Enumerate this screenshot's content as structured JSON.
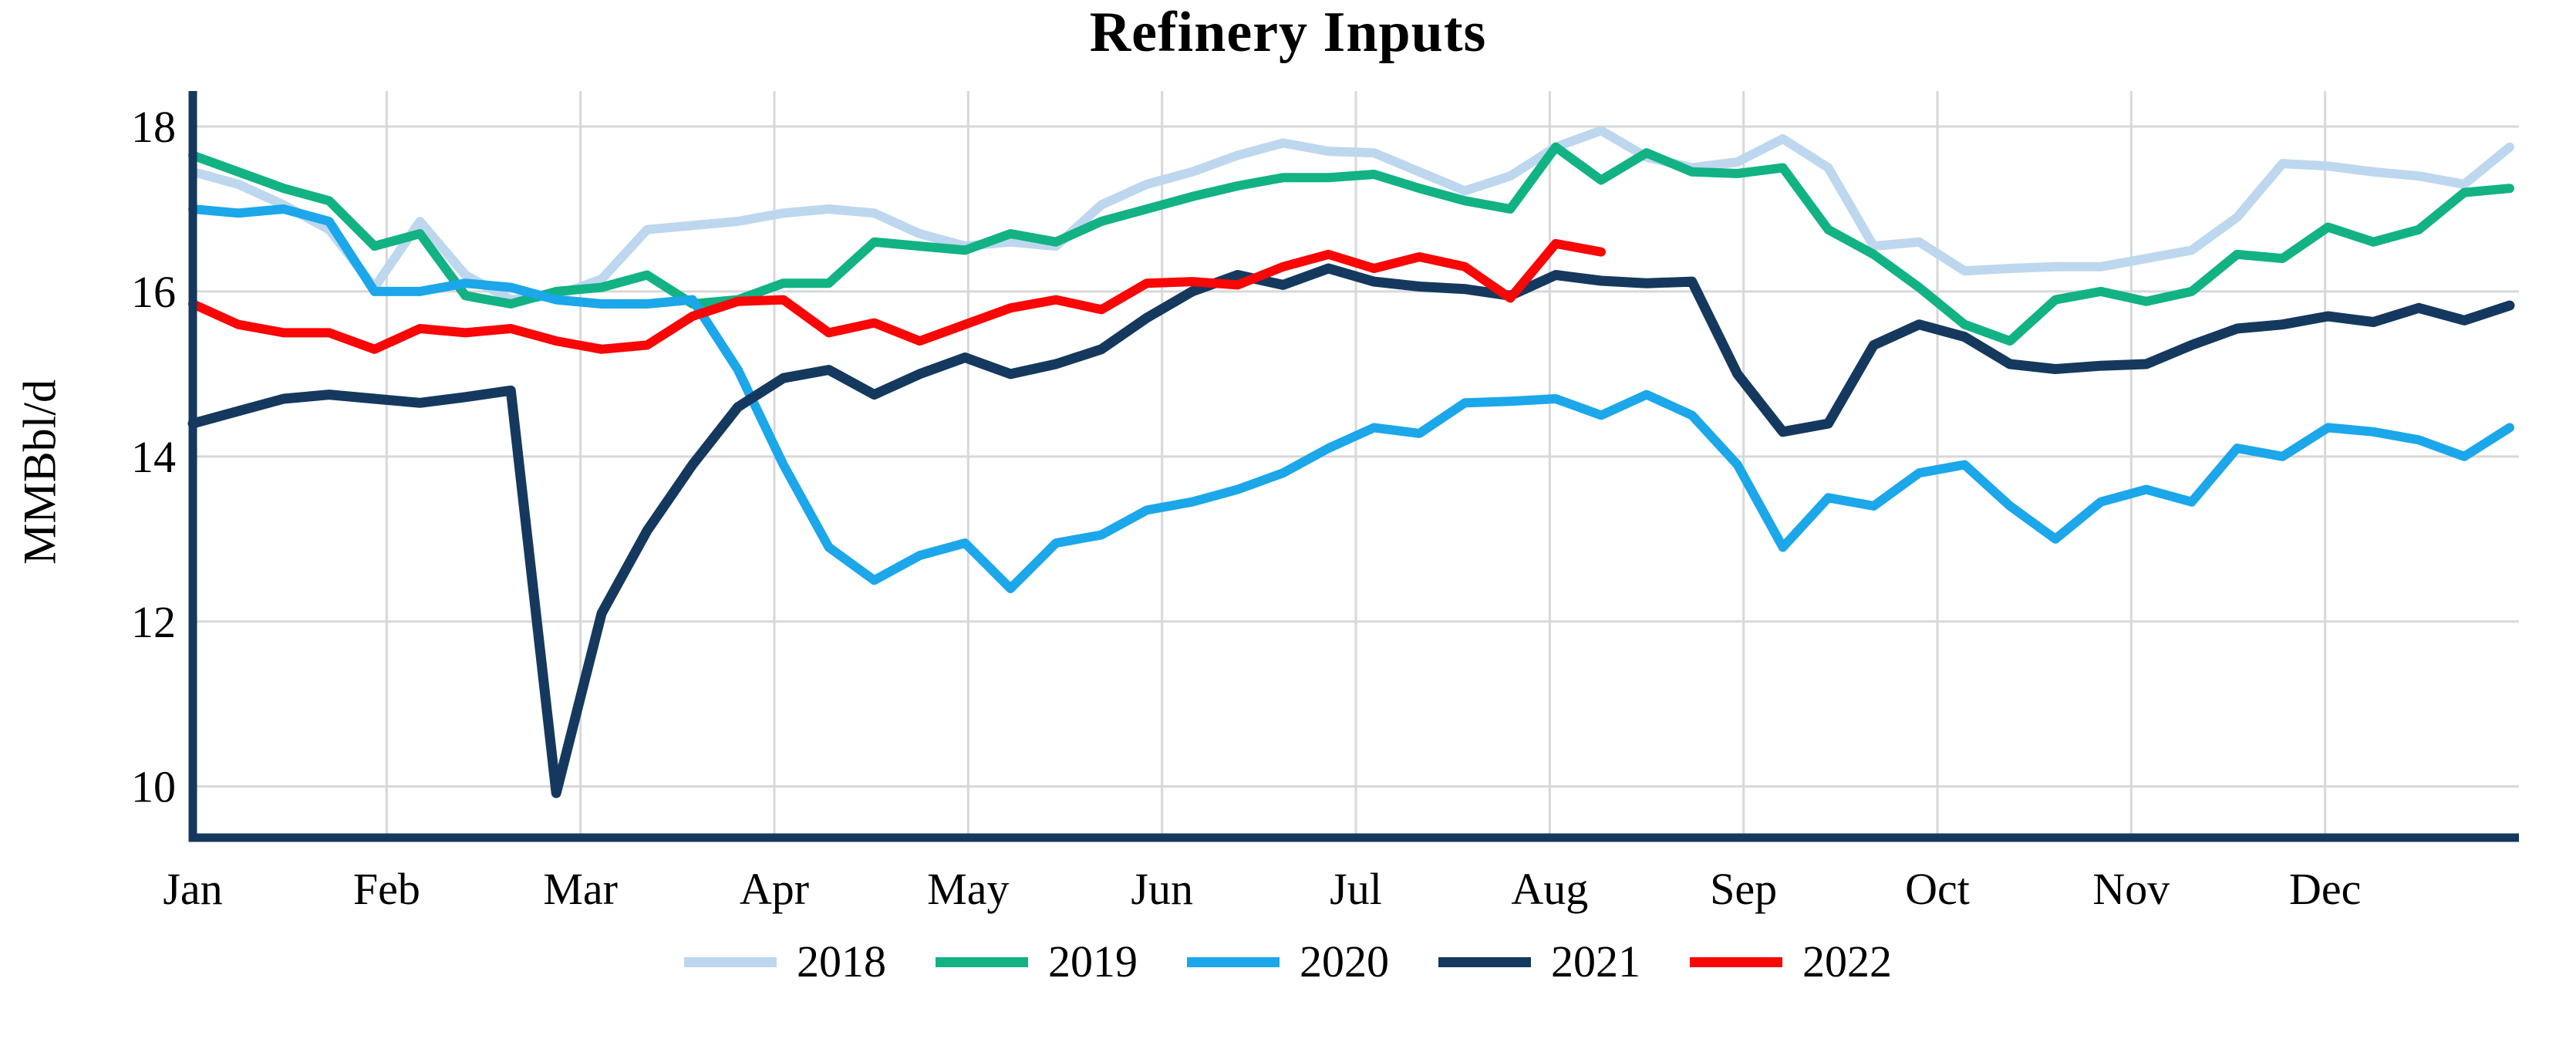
{
  "title": "Refinery Inputs",
  "y_axis": {
    "label": "MMBbl/d",
    "tick_labels": [
      "18",
      "16",
      "14",
      "12",
      "10"
    ]
  },
  "x_axis": {
    "months": [
      "Jan",
      "Feb",
      "Mar",
      "Apr",
      "May",
      "Jun",
      "Jul",
      "Aug",
      "Sep",
      "Oct",
      "Nov",
      "Dec"
    ]
  },
  "colors": {
    "grid": "#D8D8D8",
    "axis": "#14385E",
    "text": "#000000",
    "series_2018": "#BDD7EE",
    "series_2019": "#12B284",
    "series_2020": "#1BA7EA",
    "series_2021": "#15395E",
    "series_2022": "#F90606"
  },
  "chart_data": {
    "type": "line",
    "title": "Refinery Inputs",
    "xlabel": "",
    "ylabel": "MMBbl/d",
    "x_unit": "week of year (weekly data, Jan through Dec)",
    "categories": [
      "Jan",
      "Feb",
      "Mar",
      "Apr",
      "May",
      "Jun",
      "Jul",
      "Aug",
      "Sep",
      "Oct",
      "Nov",
      "Dec"
    ],
    "ylim": [
      9.38,
      18.43
    ],
    "yticks": [
      10,
      12,
      14,
      16,
      18
    ],
    "grid": true,
    "legend_position": "bottom",
    "note": "2022 series is partial, ending mid-August",
    "series": [
      {
        "name": "2018",
        "color": "#BDD7EE",
        "values": [
          17.45,
          17.3,
          17.05,
          16.75,
          16.05,
          16.85,
          16.2,
          15.9,
          15.95,
          16.15,
          16.75,
          16.8,
          16.85,
          16.95,
          17.0,
          16.95,
          16.7,
          16.55,
          16.6,
          16.55,
          17.05,
          17.3,
          17.45,
          17.65,
          17.8,
          17.7,
          17.68,
          17.45,
          17.22,
          17.4,
          17.75,
          17.95,
          17.63,
          17.5,
          17.57,
          17.85,
          17.5,
          16.55,
          16.6,
          16.25,
          16.28,
          16.3,
          16.3,
          16.4,
          16.5,
          16.9,
          17.55,
          17.52,
          17.45,
          17.4,
          17.3,
          17.75
        ]
      },
      {
        "name": "2019",
        "color": "#12B284",
        "values": [
          17.65,
          17.45,
          17.25,
          17.1,
          16.55,
          16.7,
          15.95,
          15.85,
          16.0,
          16.05,
          16.2,
          15.85,
          15.9,
          16.1,
          16.1,
          16.6,
          16.55,
          16.5,
          16.7,
          16.6,
          16.85,
          17.0,
          17.15,
          17.28,
          17.38,
          17.38,
          17.42,
          17.25,
          17.1,
          17.0,
          17.75,
          17.35,
          17.68,
          17.45,
          17.43,
          17.5,
          16.75,
          16.45,
          16.05,
          15.6,
          15.4,
          15.9,
          16.0,
          15.88,
          16.0,
          16.45,
          16.4,
          16.78,
          16.6,
          16.75,
          17.2,
          17.25
        ]
      },
      {
        "name": "2020",
        "color": "#1BA7EA",
        "values": [
          17.0,
          16.95,
          17.0,
          16.85,
          16.0,
          16.0,
          16.1,
          16.05,
          15.9,
          15.85,
          15.85,
          15.9,
          15.05,
          13.9,
          12.9,
          12.5,
          12.8,
          12.95,
          12.4,
          12.95,
          13.05,
          13.35,
          13.45,
          13.6,
          13.8,
          14.1,
          14.35,
          14.28,
          14.65,
          14.67,
          14.7,
          14.5,
          14.75,
          14.5,
          13.9,
          12.9,
          13.5,
          13.4,
          13.8,
          13.9,
          13.4,
          13.0,
          13.45,
          13.6,
          13.45,
          14.1,
          14.0,
          14.35,
          14.3,
          14.2,
          14.0,
          14.35
        ]
      },
      {
        "name": "2021",
        "color": "#15395E",
        "values": [
          14.4,
          14.55,
          14.7,
          14.75,
          14.7,
          14.65,
          14.72,
          14.8,
          9.92,
          12.1,
          13.1,
          13.9,
          14.6,
          14.95,
          15.05,
          14.75,
          15.0,
          15.2,
          15.0,
          15.12,
          15.3,
          15.68,
          16.0,
          16.2,
          16.08,
          16.28,
          16.12,
          16.06,
          16.03,
          15.95,
          16.2,
          16.13,
          16.1,
          16.12,
          15.0,
          14.3,
          14.4,
          15.35,
          15.6,
          15.45,
          15.12,
          15.06,
          15.1,
          15.12,
          15.35,
          15.55,
          15.6,
          15.7,
          15.63,
          15.8,
          15.65,
          15.83
        ]
      },
      {
        "name": "2022",
        "color": "#F90606",
        "values": [
          15.85,
          15.6,
          15.5,
          15.5,
          15.3,
          15.55,
          15.5,
          15.55,
          15.4,
          15.3,
          15.35,
          15.7,
          15.88,
          15.9,
          15.5,
          15.62,
          15.4,
          15.6,
          15.8,
          15.9,
          15.78,
          16.1,
          16.12,
          16.08,
          16.3,
          16.45,
          16.28,
          16.42,
          16.3,
          15.92,
          16.58,
          16.48
        ]
      }
    ]
  }
}
